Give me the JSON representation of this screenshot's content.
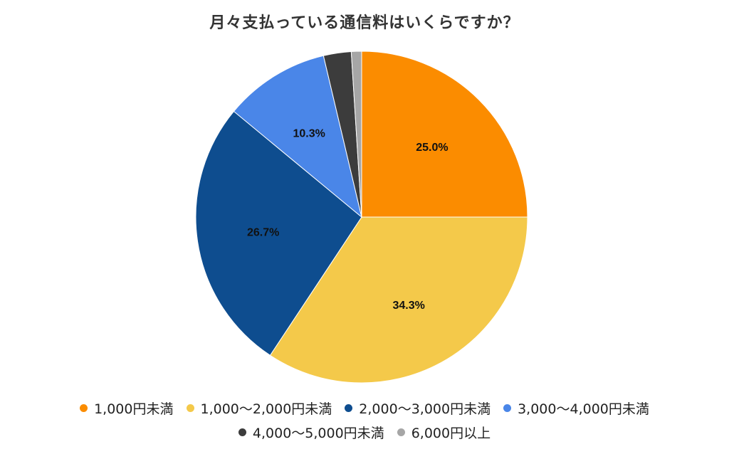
{
  "chart_data": {
    "type": "pie",
    "title": "月々支払っている通信料はいくらですか？",
    "slices": [
      {
        "label": "1,000円未満",
        "value": 25.0,
        "display": "25.0%",
        "color": "#fb8c00",
        "show_label": true
      },
      {
        "label": "1,000〜2,000円未満",
        "value": 34.3,
        "display": "34.3%",
        "color": "#f4c94a",
        "show_label": true
      },
      {
        "label": "2,000〜3,000円未満",
        "value": 26.7,
        "display": "26.7%",
        "color": "#0e4d8f",
        "show_label": true
      },
      {
        "label": "3,000〜4,000円未満",
        "value": 10.3,
        "display": "10.3%",
        "color": "#4a86e8",
        "show_label": true
      },
      {
        "label": "4,000〜5,000円未満",
        "value": 2.7,
        "display": "",
        "color": "#3c3c3c",
        "show_label": false
      },
      {
        "label": "6,000円以上",
        "value": 1.0,
        "display": "",
        "color": "#a6a6a6",
        "show_label": false
      }
    ],
    "start": "top",
    "direction": "clockwise",
    "legend_position": "bottom"
  }
}
